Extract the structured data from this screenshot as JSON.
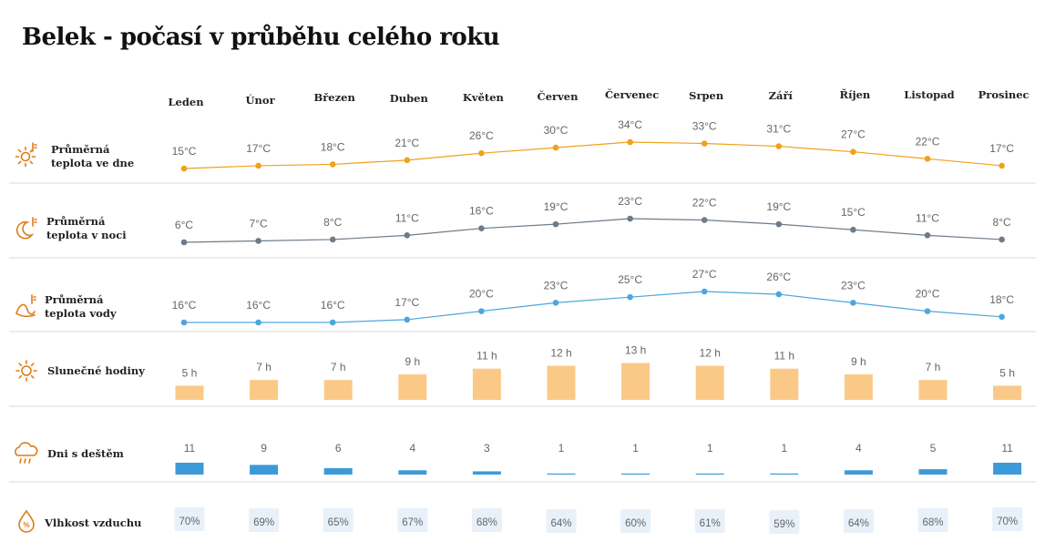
{
  "title": "Belek - počasí v průběhu celého roku",
  "colors": {
    "day": "#f0a21a",
    "night": "#6d7b8a",
    "water": "#4ea6de",
    "sun_bar": "#fbc987",
    "rain_bar": "#3d9ad9",
    "hum_box": "#e8f1fa",
    "icon": "#e07b16",
    "divider": "#d9d9d9"
  },
  "months": [
    "Leden",
    "Únor",
    "Březen",
    "Duben",
    "Květen",
    "Červen",
    "Červenec",
    "Srpen",
    "Září",
    "Říjen",
    "Listopad",
    "Prosinec"
  ],
  "rows": {
    "day": {
      "label_lines": [
        "Průměrná",
        "teplota ve dne"
      ],
      "icon": "sun-thermometer-icon"
    },
    "night": {
      "label_lines": [
        "Průměrná",
        "teplota v noci"
      ],
      "icon": "moon-thermometer-icon"
    },
    "water": {
      "label_lines": [
        "Průměrná",
        "teplota vody"
      ],
      "icon": "wave-thermometer-icon"
    },
    "sun": {
      "label_lines": [
        "Slunečné hodiny"
      ],
      "icon": "sun-icon"
    },
    "rain": {
      "label_lines": [
        "Dni s deštěm"
      ],
      "icon": "rain-cloud-icon"
    },
    "humidity": {
      "label_lines": [
        "Vlhkost vzduchu"
      ],
      "icon": "humidity-drop-icon"
    }
  },
  "chart_data": [
    {
      "type": "line",
      "title": "Průměrná teplota ve dne",
      "categories": [
        "Leden",
        "Únor",
        "Březen",
        "Duben",
        "Květen",
        "Červen",
        "Červenec",
        "Srpen",
        "Září",
        "Říjen",
        "Listopad",
        "Prosinec"
      ],
      "values": [
        15,
        17,
        18,
        21,
        26,
        30,
        34,
        33,
        31,
        27,
        22,
        17
      ],
      "labels": [
        "15°C",
        "17°C",
        "18°C",
        "21°C",
        "26°C",
        "30°C",
        "34°C",
        "33°C",
        "31°C",
        "27°C",
        "22°C",
        "17°C"
      ],
      "unit": "°C"
    },
    {
      "type": "line",
      "title": "Průměrná teplota v noci",
      "categories": [
        "Leden",
        "Únor",
        "Březen",
        "Duben",
        "Květen",
        "Červen",
        "Červenec",
        "Srpen",
        "Září",
        "Říjen",
        "Listopad",
        "Prosinec"
      ],
      "values": [
        6,
        7,
        8,
        11,
        16,
        19,
        23,
        22,
        19,
        15,
        11,
        8
      ],
      "labels": [
        "6°C",
        "7°C",
        "8°C",
        "11°C",
        "16°C",
        "19°C",
        "23°C",
        "22°C",
        "19°C",
        "15°C",
        "11°C",
        "8°C"
      ],
      "unit": "°C"
    },
    {
      "type": "line",
      "title": "Průměrná teplota vody",
      "categories": [
        "Leden",
        "Únor",
        "Březen",
        "Duben",
        "Květen",
        "Červen",
        "Červenec",
        "Srpen",
        "Září",
        "Říjen",
        "Listopad",
        "Prosinec"
      ],
      "values": [
        16,
        16,
        16,
        17,
        20,
        23,
        25,
        27,
        26,
        23,
        20,
        18
      ],
      "labels": [
        "16°C",
        "16°C",
        "16°C",
        "17°C",
        "20°C",
        "23°C",
        "25°C",
        "27°C",
        "26°C",
        "23°C",
        "20°C",
        "18°C"
      ],
      "unit": "°C"
    },
    {
      "type": "bar",
      "title": "Slunečné hodiny",
      "categories": [
        "Leden",
        "Únor",
        "Březen",
        "Duben",
        "Květen",
        "Červen",
        "Červenec",
        "Srpen",
        "Září",
        "Říjen",
        "Listopad",
        "Prosinec"
      ],
      "values": [
        5,
        7,
        7,
        9,
        11,
        12,
        13,
        12,
        11,
        9,
        7,
        5
      ],
      "labels": [
        "5 h",
        "7 h",
        "7 h",
        "9 h",
        "11 h",
        "12 h",
        "13 h",
        "12 h",
        "11 h",
        "9 h",
        "7 h",
        "5 h"
      ],
      "unit": "h"
    },
    {
      "type": "bar",
      "title": "Dni s deštěm",
      "categories": [
        "Leden",
        "Únor",
        "Březen",
        "Duben",
        "Květen",
        "Červen",
        "Červenec",
        "Srpen",
        "Září",
        "Říjen",
        "Listopad",
        "Prosinec"
      ],
      "values": [
        11,
        9,
        6,
        4,
        3,
        1,
        1,
        1,
        1,
        4,
        5,
        11
      ],
      "labels": [
        "11",
        "9",
        "6",
        "4",
        "3",
        "1",
        "1",
        "1",
        "1",
        "4",
        "5",
        "11"
      ]
    },
    {
      "type": "table",
      "title": "Vlhkost vzduchu",
      "categories": [
        "Leden",
        "Únor",
        "Březen",
        "Duben",
        "Květen",
        "Červen",
        "Červenec",
        "Srpen",
        "Září",
        "Říjen",
        "Listopad",
        "Prosinec"
      ],
      "values": [
        70,
        69,
        65,
        67,
        68,
        64,
        60,
        61,
        59,
        64,
        68,
        70
      ],
      "labels": [
        "70%",
        "69%",
        "65%",
        "67%",
        "68%",
        "64%",
        "60%",
        "61%",
        "59%",
        "64%",
        "68%",
        "70%"
      ],
      "unit": "%"
    }
  ]
}
